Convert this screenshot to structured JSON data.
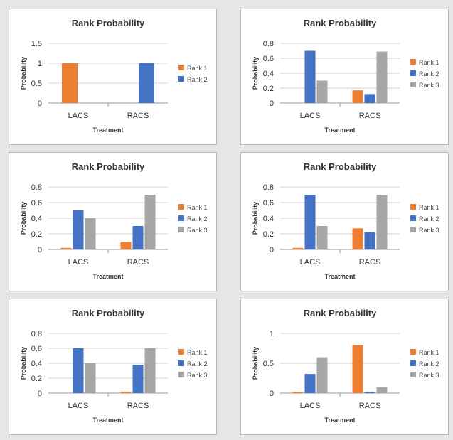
{
  "colors": {
    "Rank 1": "#ED7D31",
    "Rank 2": "#4472C4",
    "Rank 3": "#A5A5A5"
  },
  "chart_data": [
    {
      "type": "bar",
      "title": "Rank Probability",
      "xlabel": "Treatment",
      "ylabel": "Probability",
      "categories": [
        "LACS",
        "RACS"
      ],
      "ylim": [
        0,
        1.5
      ],
      "yticks": [
        "0",
        "0.5",
        "1",
        "1.5"
      ],
      "grid": true,
      "legend": "right",
      "series": [
        {
          "name": "Rank 1",
          "values": [
            1,
            0
          ]
        },
        {
          "name": "Rank 2",
          "values": [
            0,
            1
          ]
        }
      ]
    },
    {
      "type": "bar",
      "title": "Rank Probability",
      "xlabel": "Treatment",
      "ylabel": "Probability",
      "categories": [
        "LACS",
        "RACS"
      ],
      "ylim": [
        0,
        0.8
      ],
      "yticks": [
        "0",
        "0.2",
        "0.4",
        "0.6",
        "0.8"
      ],
      "grid": true,
      "legend": "right",
      "series": [
        {
          "name": "Rank 1",
          "values": [
            0,
            0.17
          ]
        },
        {
          "name": "Rank 2",
          "values": [
            0.7,
            0.12
          ]
        },
        {
          "name": "Rank 3",
          "values": [
            0.3,
            0.69
          ]
        }
      ]
    },
    {
      "type": "bar",
      "title": "Rank Probability",
      "xlabel": "Treatment",
      "ylabel": "Probability",
      "categories": [
        "LACS",
        "RACS"
      ],
      "ylim": [
        0,
        0.8
      ],
      "yticks": [
        "0",
        "0.2",
        "0.4",
        "0.6",
        "0.8"
      ],
      "grid": true,
      "legend": "right",
      "series": [
        {
          "name": "Rank 1",
          "values": [
            0.02,
            0.1
          ]
        },
        {
          "name": "Rank 2",
          "values": [
            0.5,
            0.3
          ]
        },
        {
          "name": "Rank 3",
          "values": [
            0.4,
            0.7
          ]
        }
      ]
    },
    {
      "type": "bar",
      "title": "Rank Probability",
      "xlabel": "Treatment",
      "ylabel": "Probability",
      "categories": [
        "LACS",
        "RACS"
      ],
      "ylim": [
        0,
        0.8
      ],
      "yticks": [
        "0",
        "0.2",
        "0.4",
        "0.6",
        "0.8"
      ],
      "grid": true,
      "legend": "right",
      "series": [
        {
          "name": "Rank 1",
          "values": [
            0.02,
            0.27
          ]
        },
        {
          "name": "Rank 2",
          "values": [
            0.7,
            0.22
          ]
        },
        {
          "name": "Rank 3",
          "values": [
            0.3,
            0.7
          ]
        }
      ]
    },
    {
      "type": "bar",
      "title": "Rank Probability",
      "xlabel": "Treatment",
      "ylabel": "Probability",
      "categories": [
        "LACS",
        "RACS"
      ],
      "ylim": [
        0,
        0.8
      ],
      "yticks": [
        "0",
        "0.2",
        "0.4",
        "0.6",
        "0.8"
      ],
      "grid": true,
      "legend": "right",
      "series": [
        {
          "name": "Rank 1",
          "values": [
            0,
            0.02
          ]
        },
        {
          "name": "Rank 2",
          "values": [
            0.6,
            0.38
          ]
        },
        {
          "name": "Rank 3",
          "values": [
            0.4,
            0.6
          ]
        }
      ]
    },
    {
      "type": "bar",
      "title": "Rank Probability",
      "xlabel": "Treatment",
      "ylabel": "Probability",
      "categories": [
        "LACS",
        "RACS"
      ],
      "ylim": [
        0,
        1
      ],
      "yticks": [
        "0",
        "0.5",
        "1"
      ],
      "grid": true,
      "legend": "right",
      "series": [
        {
          "name": "Rank 1",
          "values": [
            0.02,
            0.8
          ]
        },
        {
          "name": "Rank 2",
          "values": [
            0.32,
            0.02
          ]
        },
        {
          "name": "Rank 3",
          "values": [
            0.6,
            0.1
          ]
        }
      ]
    }
  ]
}
